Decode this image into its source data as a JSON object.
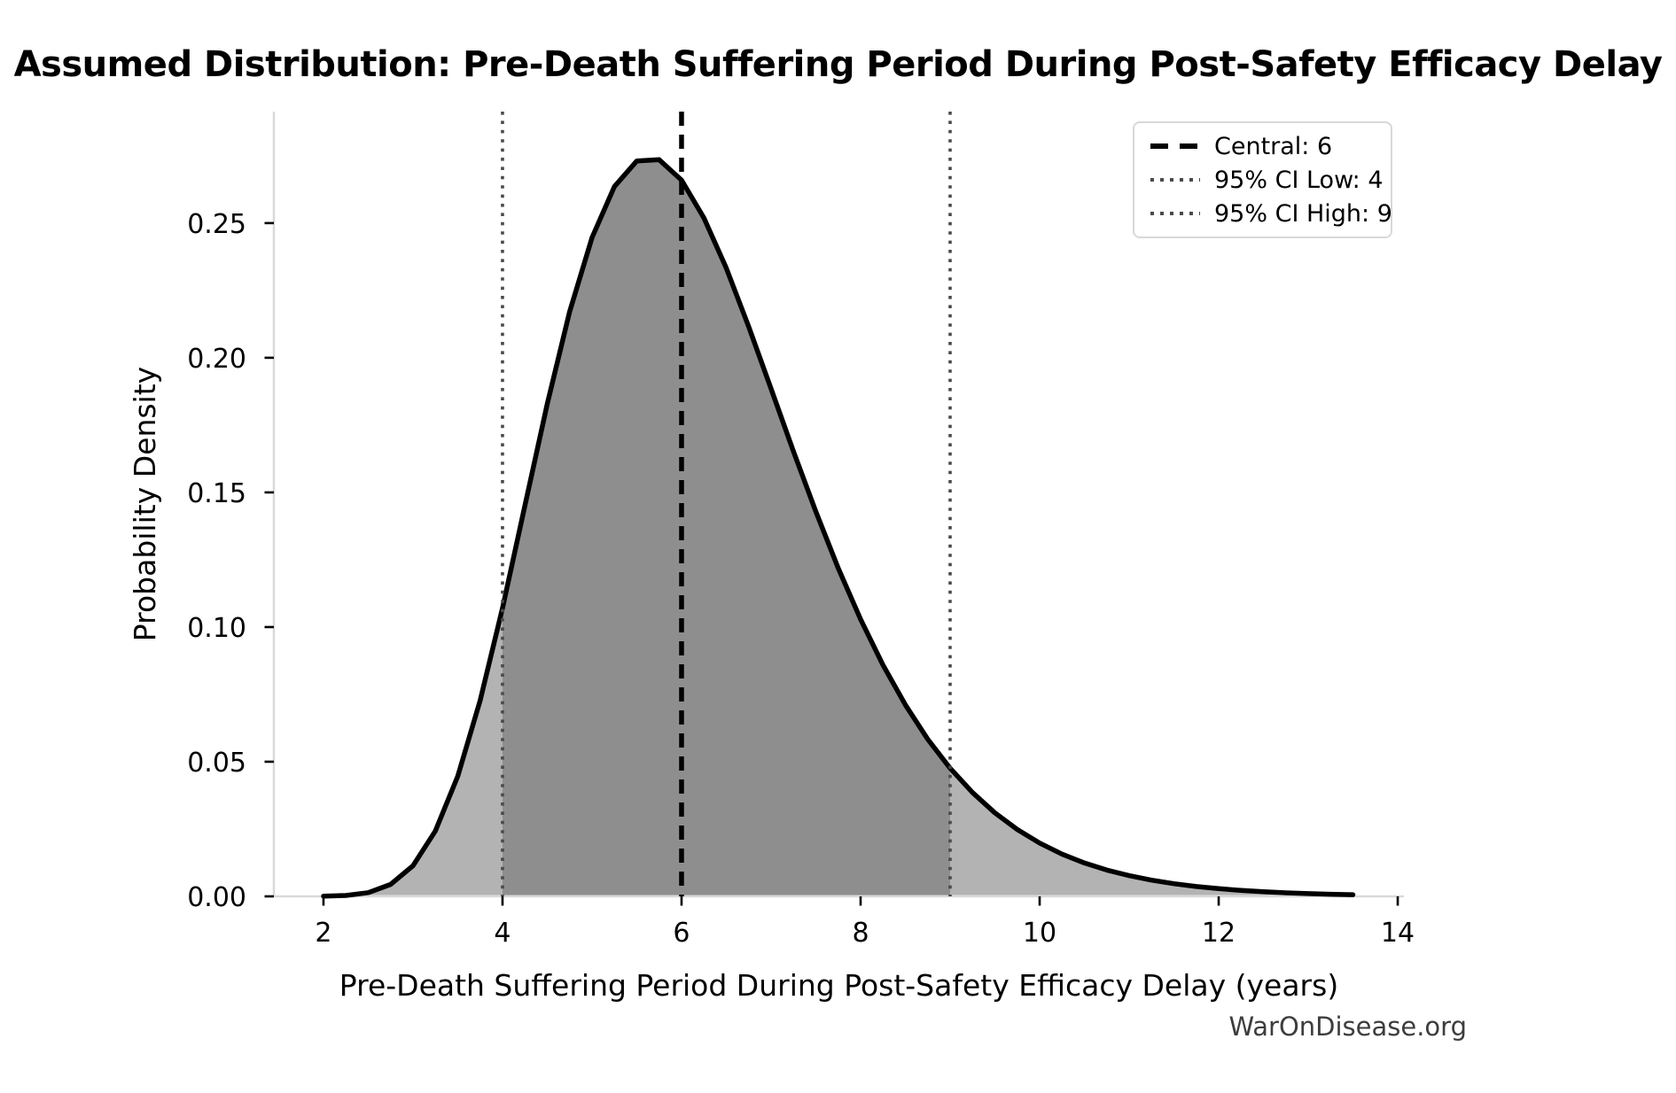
{
  "chart_data": {
    "type": "area",
    "title": "Assumed Distribution: Pre-Death Suffering Period During Post-Safety Efficacy Delay",
    "xlabel": "Pre-Death Suffering Period During Post-Safety Efficacy Delay (years)",
    "ylabel": "Probability Density",
    "watermark": "WarOnDisease.org",
    "xlim": [
      1.446,
      14.069
    ],
    "ylim": [
      0,
      0.2914
    ],
    "x_ticks": [
      2,
      4,
      6,
      8,
      10,
      12,
      14
    ],
    "x_tick_labels": [
      "2",
      "4",
      "6",
      "8",
      "10",
      "12",
      "14"
    ],
    "y_ticks": [
      0.0,
      0.05,
      0.1,
      0.15,
      0.2,
      0.25
    ],
    "y_tick_labels": [
      "0.00",
      "0.05",
      "0.10",
      "0.15",
      "0.20",
      "0.25"
    ],
    "grid": false,
    "legend_position": "upper right",
    "central": 6,
    "ci_low": 4,
    "ci_high": 9,
    "ci_fill_range": [
      4,
      9
    ],
    "curve": {
      "x": [
        2,
        2.25,
        2.5,
        2.75,
        3,
        3.25,
        3.5,
        3.75,
        4,
        4.25,
        4.5,
        4.75,
        5,
        5.25,
        5.5,
        5.75,
        6,
        6.25,
        6.5,
        6.75,
        7,
        7.25,
        7.5,
        7.75,
        8,
        8.25,
        8.5,
        8.75,
        9,
        9.25,
        9.5,
        9.75,
        10,
        10.25,
        10.5,
        10.75,
        11,
        11.25,
        11.5,
        11.75,
        12,
        12.25,
        12.5,
        12.75,
        13,
        13.25,
        13.5
      ],
      "density": [
        5e-05,
        0.00032,
        0.00139,
        0.00445,
        0.01139,
        0.02427,
        0.04462,
        0.0727,
        0.1071,
        0.14502,
        0.1829,
        0.21711,
        0.24463,
        0.26355,
        0.27309,
        0.27353,
        0.26596,
        0.25194,
        0.23324,
        0.21158,
        0.1885,
        0.16527,
        0.14286,
        0.12192,
        0.10288,
        0.08593,
        0.07113,
        0.05839,
        0.0476,
        0.03854,
        0.03102,
        0.02483,
        0.01979,
        0.0157,
        0.01241,
        0.00977,
        0.00768,
        0.00601,
        0.0047,
        0.00366,
        0.00285,
        0.00221,
        0.00172,
        0.00133,
        0.00103,
        0.00079,
        0.00061
      ]
    },
    "legend": {
      "items": [
        {
          "label": "Central: 6",
          "style": "dashed",
          "color": "#000000"
        },
        {
          "label": "95% CI Low: 4",
          "style": "dotted",
          "color": "#4a4a4a"
        },
        {
          "label": "95% CI High: 9",
          "style": "dotted",
          "color": "#4a4a4a"
        }
      ]
    },
    "colors": {
      "curve": "#000000",
      "fill_outer": "#b3b3b3",
      "fill_ci": "#8e8e8e",
      "central_line": "#000000",
      "ci_line": "#4a4a4a",
      "spine": "#d9d9d9",
      "tick": "#000000",
      "text": "#000000",
      "watermark": "#3d3d3d"
    }
  }
}
